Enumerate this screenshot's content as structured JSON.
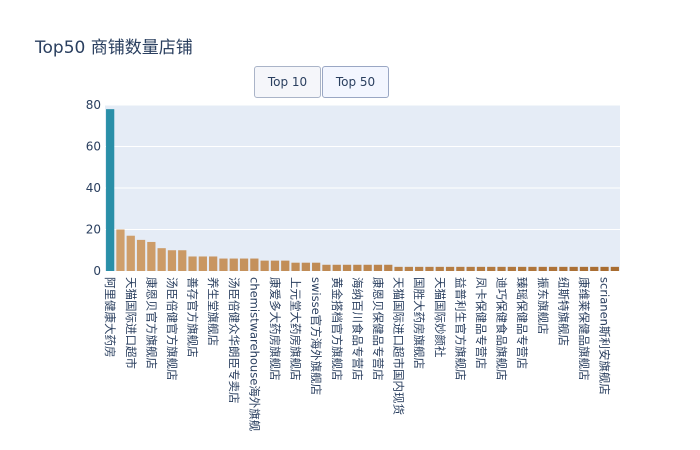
{
  "title": "Top50 商铺数量店铺",
  "buttons": [
    {
      "label": "Top 10",
      "active": false
    },
    {
      "label": "Top 50",
      "active": true
    }
  ],
  "chart_data": {
    "type": "bar",
    "ylim": [
      0,
      80
    ],
    "yticks": [
      0,
      20,
      40,
      60,
      80
    ],
    "grid": true,
    "categories": [
      "阿里健康大药房",
      "",
      "天猫国际进口超市",
      "",
      "康恩贝官方旗舰店",
      "",
      "汤臣倍健官方旗舰店",
      "",
      "善存官方旗舰店",
      "",
      "养生堂旗舰店",
      "",
      "汤臣倍健众华朗臣专卖店",
      "",
      "chemistwarehouse海外旗舰",
      "",
      "康爱多大药房旗舰店",
      "",
      "上元堂大药房旗舰店",
      "",
      "swisse官方海外旗舰店",
      "",
      "黄金搭档官方旗舰店",
      "",
      "海纳百川食品专营店",
      "",
      "康恩贝保健品专营店",
      "",
      "天猫国际进口超市国内现货",
      "",
      "国胜大药房旗舰店",
      "",
      "天猫国际妙颜社",
      "",
      "益普利生官方旗舰店",
      "",
      "凤卡保健品专营店",
      "",
      "迪巧保健食品旗舰店",
      "",
      "臻瑶保健品专营店",
      "",
      "振东旗舰店",
      "",
      "纽斯特旗舰店",
      "",
      "康维莱保健品旗舰店",
      "",
      "scrianen斯利安旗舰店",
      ""
    ],
    "values": [
      78,
      20,
      17,
      15,
      14,
      11,
      10,
      10,
      7,
      7,
      7,
      6,
      6,
      6,
      6,
      5,
      5,
      5,
      4,
      4,
      4,
      3,
      3,
      3,
      3,
      3,
      3,
      3,
      2,
      2,
      2,
      2,
      2,
      2,
      2,
      2,
      2,
      2,
      2,
      2,
      2,
      2,
      2,
      2,
      2,
      2,
      2,
      2,
      2,
      2
    ],
    "colors": {
      "first": "#2a8fa8",
      "gradient_start": "#cf9f6c",
      "gradient_end": "#a86c30",
      "plot_bg": "#e5ecf6",
      "grid": "#ffffff"
    }
  }
}
